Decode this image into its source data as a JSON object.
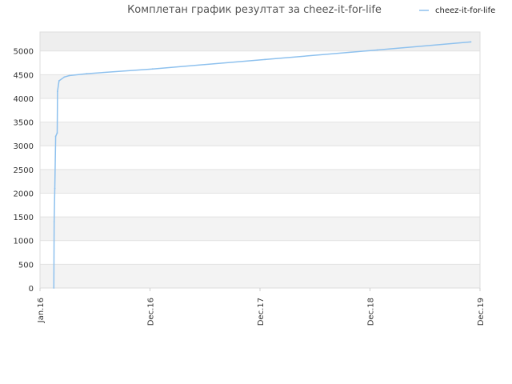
{
  "chart_data": {
    "type": "line",
    "title": "Комплетан график резултат за cheez-it-for-life",
    "xlabel": "",
    "ylabel": "",
    "x_ticks": [
      "Jan.16",
      "Dec.16",
      "Dec.17",
      "Dec.18",
      "Dec.19"
    ],
    "y_ticks": [
      0,
      500,
      1000,
      1500,
      2000,
      2500,
      3000,
      3500,
      4000,
      4500,
      5000
    ],
    "ylim": [
      0,
      5400
    ],
    "xlim": [
      "2016-01-01",
      "2019-12-01"
    ],
    "grid": true,
    "legend": "top-right",
    "series": [
      {
        "name": "cheez-it-for-life",
        "color": "#8ec1ee",
        "points": [
          {
            "x": "2016-02-15",
            "y": 0
          },
          {
            "x": "2016-02-16",
            "y": 1400
          },
          {
            "x": "2016-02-18",
            "y": 2100
          },
          {
            "x": "2016-02-21",
            "y": 3200
          },
          {
            "x": "2016-02-26",
            "y": 3270
          },
          {
            "x": "2016-02-27",
            "y": 4150
          },
          {
            "x": "2016-03-03",
            "y": 4370
          },
          {
            "x": "2016-03-20",
            "y": 4450
          },
          {
            "x": "2016-04-05",
            "y": 4480
          },
          {
            "x": "2016-06-01",
            "y": 4520
          },
          {
            "x": "2017-01-01",
            "y": 4620
          },
          {
            "x": "2018-01-01",
            "y": 4820
          },
          {
            "x": "2019-01-01",
            "y": 5020
          },
          {
            "x": "2019-11-01",
            "y": 5190
          }
        ]
      }
    ]
  }
}
